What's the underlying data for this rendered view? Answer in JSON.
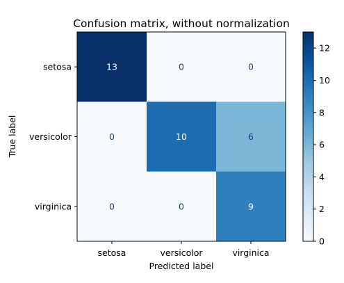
{
  "chart_data": {
    "type": "heatmap",
    "title": "Confusion matrix, without normalization",
    "xlabel": "Predicted label",
    "ylabel": "True label",
    "x_categories": [
      "setosa",
      "versicolor",
      "virginica"
    ],
    "y_categories": [
      "setosa",
      "versicolor",
      "virginica"
    ],
    "values": [
      [
        13,
        0,
        0
      ],
      [
        0,
        10,
        6
      ],
      [
        0,
        0,
        9
      ]
    ],
    "colorbar": {
      "range": [
        0,
        13
      ],
      "ticks": [
        0,
        2,
        4,
        6,
        8,
        10,
        12
      ]
    },
    "colormap": [
      "#f7fbff",
      "#deebf7",
      "#c6dbef",
      "#9ecae1",
      "#6baed6",
      "#4292c6",
      "#2171b5",
      "#08519c",
      "#08306b"
    ]
  }
}
